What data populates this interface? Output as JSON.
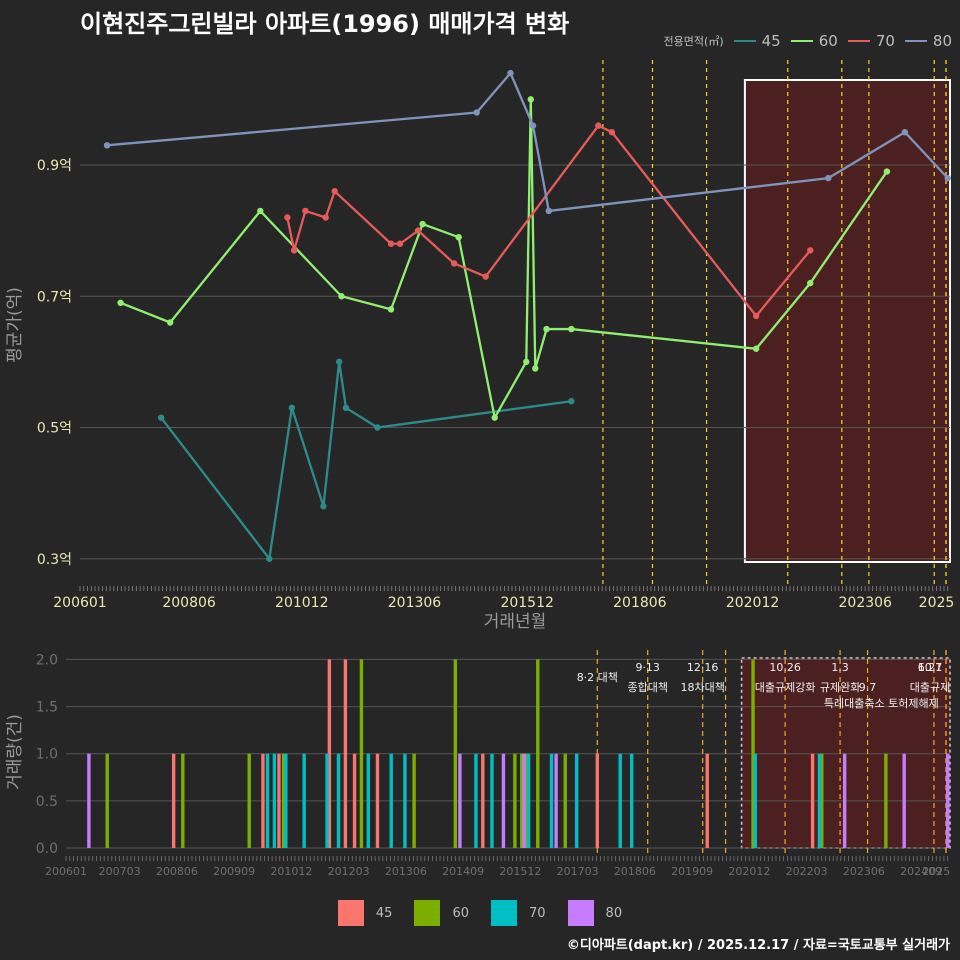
{
  "title": "이현진주그린빌라 아파트(1996) 매매가격 변화",
  "source": "©디아파트(dapt.kr) / 2025.12.17 / 자료=국토교통부 실거래가",
  "colors": {
    "bg": "#262626",
    "grid": "#555555",
    "axis_text": "#e8e8b0",
    "label": "#9a9a9a",
    "policy_line": "#ffd21f",
    "highlight_fill": "#5a1f1f",
    "highlight_border": "#ffffff",
    "line_45": "#2e8b8b",
    "line_60": "#90ee70",
    "line_70": "#e85a5a",
    "line_80": "#7f94bd",
    "bar_45": "#f8766d",
    "bar_60": "#7cae00",
    "bar_70": "#00bfc4",
    "bar_80": "#c77cff"
  },
  "legend_top": {
    "title": "전용면적(㎡)",
    "items": [
      {
        "label": "45",
        "color": "#2e8b8b"
      },
      {
        "label": "60",
        "color": "#90ee70"
      },
      {
        "label": "70",
        "color": "#e85a5a"
      },
      {
        "label": "80",
        "color": "#7f94bd"
      }
    ]
  },
  "legend_bottom": {
    "items": [
      {
        "label": "45",
        "color": "#f8766d"
      },
      {
        "label": "60",
        "color": "#7cae00"
      },
      {
        "label": "70",
        "color": "#00bfc4"
      },
      {
        "label": "80",
        "color": "#c77cff"
      }
    ]
  },
  "chart_data": [
    {
      "type": "line",
      "title": "이현진주그린빌라 아파트(1996) 매매가격 변화",
      "xlabel": "거래년월",
      "ylabel": "평균가(억)",
      "xlim": [
        2006.0,
        2025.3
      ],
      "ylim": [
        0.26,
        1.06
      ],
      "x_ticks": [
        {
          "label": "200601",
          "x": 2006.0
        },
        {
          "label": "200806",
          "x": 2008.42
        },
        {
          "label": "201012",
          "x": 2010.92
        },
        {
          "label": "201306",
          "x": 2013.42
        },
        {
          "label": "201512",
          "x": 2015.92
        },
        {
          "label": "201806",
          "x": 2018.42
        },
        {
          "label": "202012",
          "x": 2020.92
        },
        {
          "label": "202306",
          "x": 2023.42
        },
        {
          "label": "2025",
          "x": 2025.0
        }
      ],
      "y_ticks": [
        {
          "label": "0.3억",
          "y": 0.3
        },
        {
          "label": "0.5억",
          "y": 0.5
        },
        {
          "label": "0.7억",
          "y": 0.7
        },
        {
          "label": "0.9억",
          "y": 0.9
        }
      ],
      "highlight_range": [
        2020.75,
        2025.3
      ],
      "policy_lines": [
        2017.6,
        2018.7,
        2019.9,
        2021.7,
        2022.9,
        2023.5,
        2024.95,
        2025.3,
        2025.6
      ],
      "series": [
        {
          "name": "45",
          "points": [
            [
              2007.8,
              0.515
            ],
            [
              2010.2,
              0.3
            ],
            [
              2010.7,
              0.53
            ],
            [
              2011.4,
              0.38
            ],
            [
              2011.75,
              0.6
            ],
            [
              2011.9,
              0.53
            ],
            [
              2012.6,
              0.5
            ],
            [
              2016.9,
              0.54
            ]
          ]
        },
        {
          "name": "60",
          "points": [
            [
              2006.9,
              0.69
            ],
            [
              2008.0,
              0.66
            ],
            [
              2010.0,
              0.83
            ],
            [
              2011.8,
              0.7
            ],
            [
              2012.9,
              0.68
            ],
            [
              2013.6,
              0.81
            ],
            [
              2014.4,
              0.79
            ],
            [
              2015.2,
              0.515
            ],
            [
              2015.9,
              0.6
            ],
            [
              2016.0,
              1.0
            ],
            [
              2016.1,
              0.59
            ],
            [
              2016.35,
              0.65
            ],
            [
              2016.9,
              0.65
            ],
            [
              2021.0,
              0.62
            ],
            [
              2022.2,
              0.72
            ],
            [
              2023.9,
              0.89
            ]
          ]
        },
        {
          "name": "70",
          "points": [
            [
              2010.6,
              0.82
            ],
            [
              2010.75,
              0.77
            ],
            [
              2011.0,
              0.83
            ],
            [
              2011.45,
              0.82
            ],
            [
              2011.65,
              0.86
            ],
            [
              2012.9,
              0.78
            ],
            [
              2013.1,
              0.78
            ],
            [
              2013.5,
              0.8
            ],
            [
              2014.3,
              0.75
            ],
            [
              2015.0,
              0.73
            ],
            [
              2017.5,
              0.96
            ],
            [
              2017.8,
              0.95
            ],
            [
              2021.0,
              0.67
            ],
            [
              2022.2,
              0.77
            ]
          ]
        },
        {
          "name": "80",
          "points": [
            [
              2006.6,
              0.93
            ],
            [
              2014.8,
              0.98
            ],
            [
              2015.55,
              1.04
            ],
            [
              2016.05,
              0.96
            ],
            [
              2016.4,
              0.83
            ],
            [
              2022.6,
              0.88
            ],
            [
              2024.3,
              0.95
            ],
            [
              2025.25,
              0.88
            ]
          ]
        }
      ]
    },
    {
      "type": "bar",
      "xlabel": "",
      "ylabel": "거래량(건)",
      "xlim": [
        2006.0,
        2025.3
      ],
      "ylim": [
        0,
        2.1
      ],
      "x_ticks": [
        {
          "label": "200601",
          "x": 2006.0
        },
        {
          "label": "200703",
          "x": 2007.17
        },
        {
          "label": "200806",
          "x": 2008.42
        },
        {
          "label": "200909",
          "x": 2009.67
        },
        {
          "label": "201012",
          "x": 2010.92
        },
        {
          "label": "201203",
          "x": 2012.17
        },
        {
          "label": "201306",
          "x": 2013.42
        },
        {
          "label": "201409",
          "x": 2014.67
        },
        {
          "label": "201512",
          "x": 2015.92
        },
        {
          "label": "201703",
          "x": 2017.17
        },
        {
          "label": "201806",
          "x": 2018.42
        },
        {
          "label": "201909",
          "x": 2019.67
        },
        {
          "label": "202012",
          "x": 2020.92
        },
        {
          "label": "202203",
          "x": 2022.17
        },
        {
          "label": "202306",
          "x": 2023.42
        },
        {
          "label": "202409",
          "x": 2024.67
        },
        {
          "label": "2025",
          "x": 2025.0
        }
      ],
      "y_ticks": [
        {
          "label": "0.0",
          "y": 0.0
        },
        {
          "label": "0.5",
          "y": 0.5
        },
        {
          "label": "1.0",
          "y": 1.0
        },
        {
          "label": "1.5",
          "y": 1.5
        },
        {
          "label": "2.0",
          "y": 2.0
        }
      ],
      "highlight_range": [
        2020.75,
        2025.3
      ],
      "policy_lines": [
        2017.6,
        2018.7,
        2019.9,
        2020.4,
        2021.7,
        2022.9,
        2023.5,
        2024.95,
        2025.3,
        2025.6
      ],
      "policy_labels": [
        {
          "text": "8·2 대책",
          "x": 2017.6,
          "row": 1
        },
        {
          "text": "9·13",
          "x": 2018.7,
          "row": 0
        },
        {
          "text": "종합대책",
          "x": 2018.7,
          "row": 2
        },
        {
          "text": "12·16",
          "x": 2019.9,
          "row": 0
        },
        {
          "text": "18차대책",
          "x": 2019.9,
          "row": 2
        },
        {
          "text": "10.26",
          "x": 2021.7,
          "row": 0
        },
        {
          "text": "대출규제강화",
          "x": 2021.7,
          "row": 2
        },
        {
          "text": "1.3",
          "x": 2022.9,
          "row": 0
        },
        {
          "text": "규제완화",
          "x": 2022.9,
          "row": 2
        },
        {
          "text": "9.7",
          "x": 2023.5,
          "row": 2
        },
        {
          "text": "특례대출축소 토허제해제",
          "x": 2023.8,
          "row": 3
        },
        {
          "text": "6.27",
          "x": 2024.95,
          "row": 0
        },
        {
          "text": "10.1",
          "x": 2025.2,
          "row": 0
        },
        {
          "text": "대출규제",
          "x": 2025.0,
          "row": 2
        }
      ],
      "series": [
        {
          "name": "45",
          "bars": [
            [
              2008.35,
              1
            ],
            [
              2010.3,
              1
            ],
            [
              2010.65,
              1
            ],
            [
              2011.75,
              2
            ],
            [
              2012.1,
              2
            ],
            [
              2012.3,
              1
            ],
            [
              2012.8,
              1
            ],
            [
              2015.1,
              1
            ],
            [
              2016.0,
              1
            ],
            [
              2017.6,
              1
            ],
            [
              2020.0,
              1
            ],
            [
              2022.3,
              1
            ]
          ]
        },
        {
          "name": "60",
          "bars": [
            [
              2006.9,
              1
            ],
            [
              2008.55,
              1
            ],
            [
              2010.0,
              1
            ],
            [
              2010.75,
              1
            ],
            [
              2012.45,
              2
            ],
            [
              2013.6,
              1
            ],
            [
              2014.5,
              2
            ],
            [
              2015.8,
              1
            ],
            [
              2015.95,
              1
            ],
            [
              2016.05,
              1
            ],
            [
              2016.3,
              2
            ],
            [
              2016.9,
              1
            ],
            [
              2021.0,
              2
            ],
            [
              2022.5,
              1
            ],
            [
              2023.9,
              1
            ]
          ]
        },
        {
          "name": "70",
          "bars": [
            [
              2010.4,
              1
            ],
            [
              2010.55,
              1
            ],
            [
              2010.8,
              1
            ],
            [
              2011.2,
              1
            ],
            [
              2011.7,
              1
            ],
            [
              2011.95,
              1
            ],
            [
              2012.6,
              1
            ],
            [
              2013.1,
              1
            ],
            [
              2013.4,
              1
            ],
            [
              2014.95,
              1
            ],
            [
              2015.3,
              1
            ],
            [
              2016.1,
              1
            ],
            [
              2016.6,
              1
            ],
            [
              2017.15,
              1
            ],
            [
              2018.1,
              1
            ],
            [
              2018.35,
              1
            ],
            [
              2021.05,
              1
            ],
            [
              2022.45,
              1
            ]
          ]
        },
        {
          "name": "80",
          "bars": [
            [
              2006.5,
              1
            ],
            [
              2014.6,
              1
            ],
            [
              2015.55,
              1
            ],
            [
              2016.0,
              1
            ],
            [
              2016.7,
              1
            ],
            [
              2023.0,
              1
            ],
            [
              2024.3,
              1
            ],
            [
              2025.25,
              1
            ]
          ]
        }
      ]
    }
  ]
}
